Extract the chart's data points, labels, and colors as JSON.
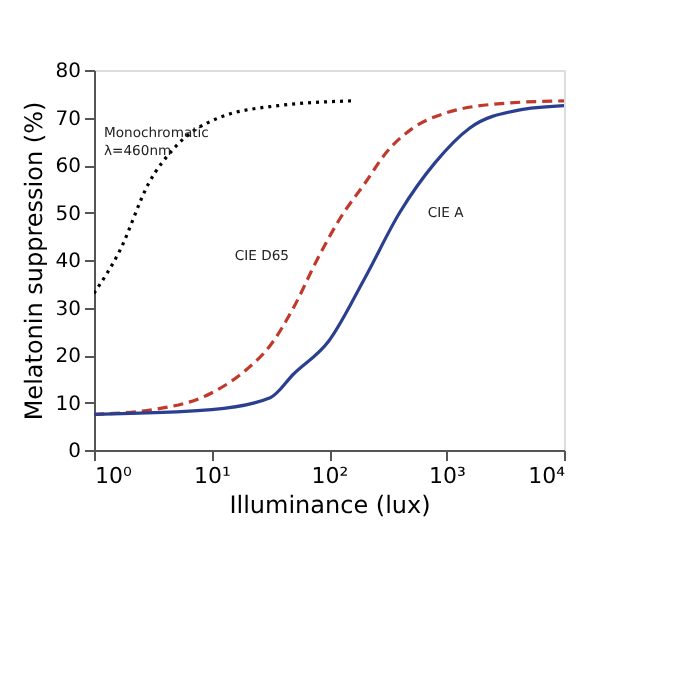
{
  "chart_data": {
    "type": "line",
    "xlabel": "Illuminance (lux)",
    "ylabel": "Melatonin suppression (%)",
    "log": "x",
    "grid": false,
    "legend": false,
    "marker": "none",
    "xlim": [
      1,
      10000
    ],
    "xticks": [
      {
        "value": 1,
        "label": "10⁰"
      },
      {
        "value": 10,
        "label": "10¹"
      },
      {
        "value": 100,
        "label": "10²"
      },
      {
        "value": 1000,
        "label": "10³"
      },
      {
        "value": 10000,
        "label": "10⁴"
      }
    ],
    "ylim": [
      0,
      80
    ],
    "yticks": [
      0,
      10,
      20,
      30,
      40,
      50,
      60,
      70,
      80
    ],
    "series": [
      {
        "name": "Monochromatic\nλ=460nm",
        "color": "#000000",
        "line_style": "dotted",
        "x": [
          1,
          1.66,
          2.9,
          5,
          11.7,
          37,
          158
        ],
        "values": [
          33,
          42,
          56,
          64,
          70,
          72.5,
          73.5
        ]
      },
      {
        "name": "CIE D65",
        "color": "#c0392b",
        "line_style": "dashed",
        "x": [
          1,
          3.16,
          10,
          20,
          31.6,
          50,
          79,
          126,
          200,
          316,
          500,
          1000,
          3160,
          10000
        ],
        "values": [
          7.5,
          8.5,
          12,
          17,
          22,
          30,
          40,
          49,
          56,
          63,
          67.5,
          71,
          73,
          73.5
        ]
      },
      {
        "name": "CIE A",
        "color": "#2a3f8f",
        "line_style": "solid",
        "x": [
          1,
          10,
          31.6,
          50,
          100,
          200,
          400,
          800,
          1580,
          4000,
          10000
        ],
        "values": [
          7.5,
          8.5,
          11,
          16,
          23,
          36,
          50,
          60.5,
          67.8,
          71.5,
          72.5
        ]
      }
    ]
  }
}
